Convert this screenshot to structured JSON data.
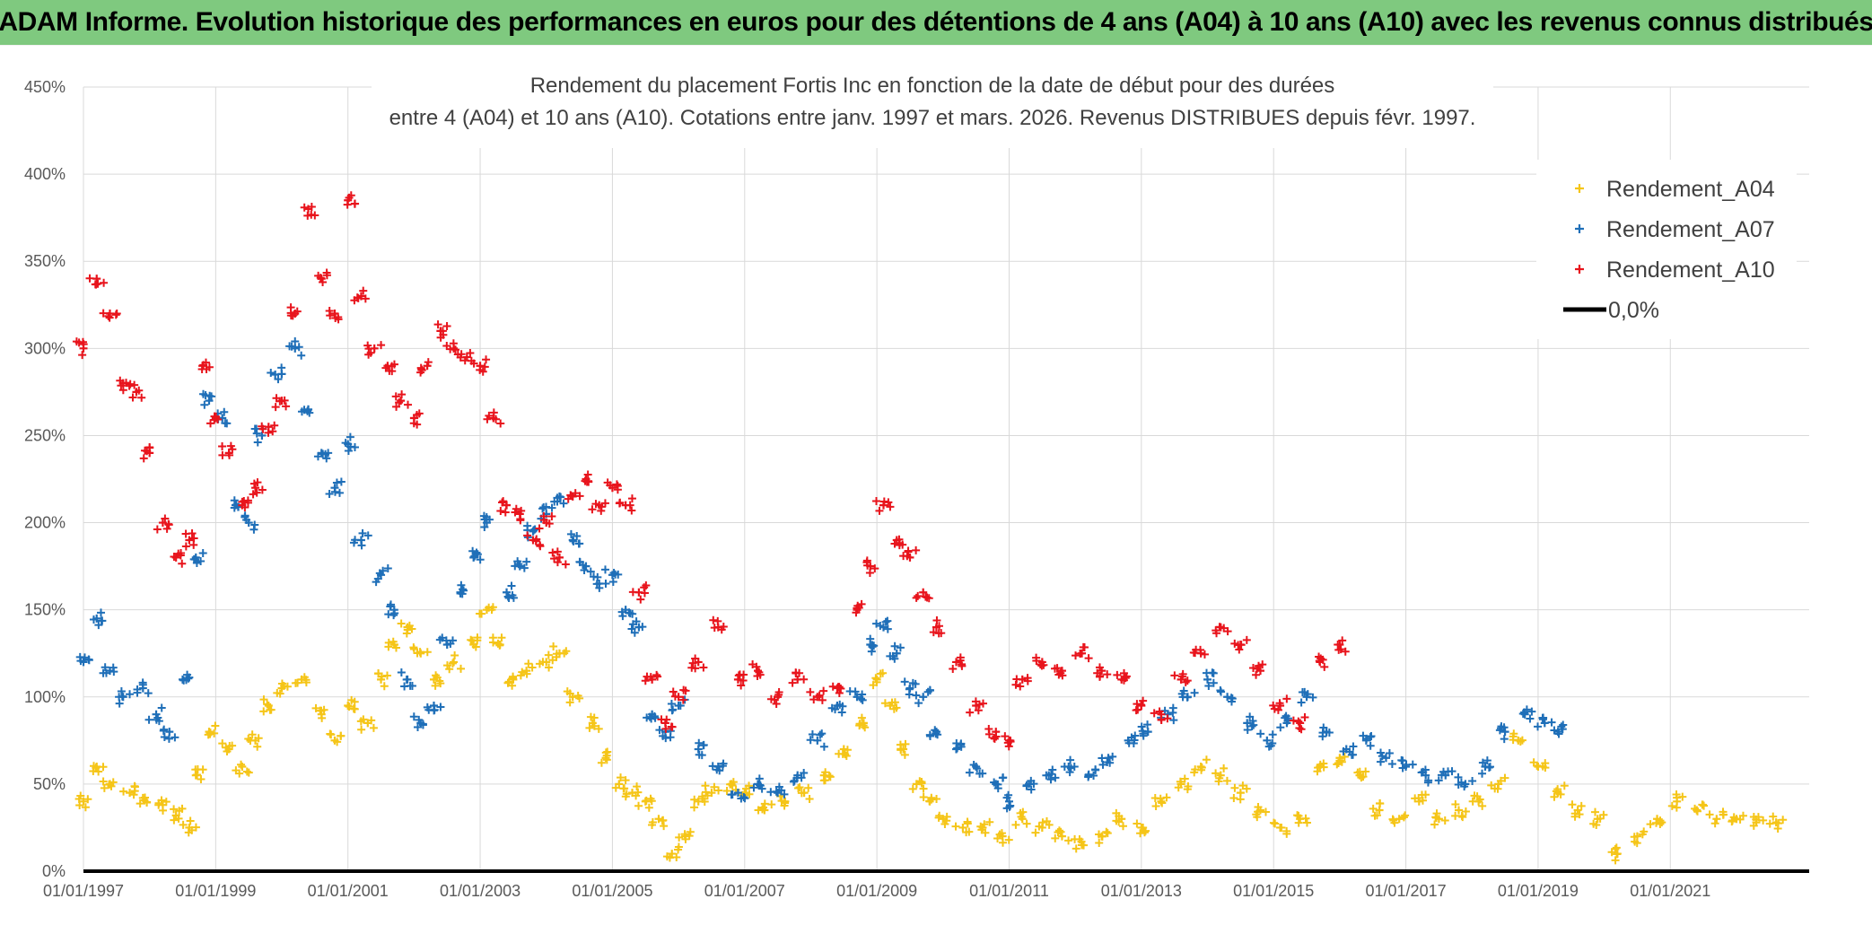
{
  "banner": {
    "title": "ADAM Informe. Evolution historique des performances en euros pour des détentions de 4 ans (A04) à 10 ans (A10) avec les revenus connus distribués"
  },
  "chart_data": {
    "type": "scatter",
    "title_lines": [
      "Rendement du placement Fortis Inc en fonction de la date de début pour des durées",
      "entre 4 (A04) et 10 ans (A10). Cotations entre janv. 1997 et mars. 2026. Revenus DISTRIBUES depuis févr. 1997."
    ],
    "x_ticks": [
      "01/01/1997",
      "01/01/1999",
      "01/01/2001",
      "01/01/2003",
      "01/01/2005",
      "01/01/2007",
      "01/01/2009",
      "01/01/2011",
      "01/01/2013",
      "01/01/2015",
      "01/01/2017",
      "01/01/2019",
      "01/01/2021"
    ],
    "y_ticks": [
      "0%",
      "50%",
      "100%",
      "150%",
      "200%",
      "250%",
      "300%",
      "350%",
      "400%",
      "450%"
    ],
    "xlim": [
      1997.0,
      2023.1
    ],
    "ylim": [
      0,
      450
    ],
    "grid": true,
    "legend_position": "top-right",
    "series": [
      {
        "name": "Rendement_A04",
        "color": "#f5c518",
        "marker": "+",
        "points": [
          [
            1997.0,
            40
          ],
          [
            1997.2,
            60
          ],
          [
            1997.4,
            50
          ],
          [
            1997.7,
            45
          ],
          [
            1997.9,
            42
          ],
          [
            1998.2,
            38
          ],
          [
            1998.4,
            32
          ],
          [
            1998.6,
            25
          ],
          [
            1998.7,
            55
          ],
          [
            1998.9,
            80
          ],
          [
            1999.2,
            70
          ],
          [
            1999.4,
            60
          ],
          [
            1999.6,
            75
          ],
          [
            1999.8,
            95
          ],
          [
            2000.0,
            105
          ],
          [
            2000.3,
            110
          ],
          [
            2000.6,
            90
          ],
          [
            2000.8,
            75
          ],
          [
            2001.0,
            95
          ],
          [
            2001.3,
            85
          ],
          [
            2001.5,
            110
          ],
          [
            2001.7,
            130
          ],
          [
            2001.9,
            140
          ],
          [
            2002.1,
            125
          ],
          [
            2002.3,
            110
          ],
          [
            2002.6,
            120
          ],
          [
            2002.9,
            130
          ],
          [
            2003.1,
            150
          ],
          [
            2003.3,
            130
          ],
          [
            2003.5,
            110
          ],
          [
            2003.7,
            115
          ],
          [
            2004.0,
            120
          ],
          [
            2004.2,
            125
          ],
          [
            2004.4,
            100
          ],
          [
            2004.7,
            85
          ],
          [
            2004.9,
            65
          ],
          [
            2005.1,
            50
          ],
          [
            2005.3,
            45
          ],
          [
            2005.5,
            40
          ],
          [
            2005.7,
            30
          ],
          [
            2005.9,
            10
          ],
          [
            2006.1,
            20
          ],
          [
            2006.3,
            40
          ],
          [
            2006.5,
            45
          ],
          [
            2006.8,
            50
          ],
          [
            2007.0,
            45
          ],
          [
            2007.3,
            35
          ],
          [
            2007.6,
            40
          ],
          [
            2007.9,
            45
          ],
          [
            2008.2,
            55
          ],
          [
            2008.5,
            70
          ],
          [
            2008.8,
            85
          ],
          [
            2009.0,
            110
          ],
          [
            2009.2,
            95
          ],
          [
            2009.4,
            70
          ],
          [
            2009.6,
            50
          ],
          [
            2009.8,
            40
          ],
          [
            2010.0,
            30
          ],
          [
            2010.3,
            25
          ],
          [
            2010.6,
            25
          ],
          [
            2010.9,
            20
          ],
          [
            2011.2,
            30
          ],
          [
            2011.5,
            25
          ],
          [
            2011.8,
            20
          ],
          [
            2012.1,
            15
          ],
          [
            2012.4,
            20
          ],
          [
            2012.7,
            30
          ],
          [
            2013.0,
            25
          ],
          [
            2013.3,
            40
          ],
          [
            2013.6,
            50
          ],
          [
            2013.9,
            60
          ],
          [
            2014.2,
            55
          ],
          [
            2014.5,
            45
          ],
          [
            2014.8,
            35
          ],
          [
            2015.1,
            25
          ],
          [
            2015.4,
            30
          ],
          [
            2015.7,
            60
          ],
          [
            2016.0,
            65
          ],
          [
            2016.3,
            55
          ],
          [
            2016.6,
            35
          ],
          [
            2016.9,
            30
          ],
          [
            2017.2,
            40
          ],
          [
            2017.5,
            30
          ],
          [
            2017.8,
            35
          ],
          [
            2018.1,
            40
          ],
          [
            2018.4,
            50
          ],
          [
            2018.7,
            75
          ],
          [
            2019.0,
            60
          ],
          [
            2019.3,
            45
          ],
          [
            2019.6,
            35
          ],
          [
            2019.9,
            30
          ],
          [
            2020.2,
            10
          ],
          [
            2020.5,
            20
          ],
          [
            2020.8,
            30
          ],
          [
            2021.1,
            40
          ],
          [
            2021.4,
            35
          ],
          [
            2021.7,
            30
          ],
          [
            2022.0,
            30
          ],
          [
            2022.3,
            28
          ],
          [
            2022.6,
            28
          ]
        ]
      },
      {
        "name": "Rendement_A07",
        "color": "#1f6fb8",
        "marker": "+",
        "points": [
          [
            1997.0,
            120
          ],
          [
            1997.2,
            145
          ],
          [
            1997.4,
            115
          ],
          [
            1997.6,
            100
          ],
          [
            1997.9,
            105
          ],
          [
            1998.1,
            90
          ],
          [
            1998.3,
            80
          ],
          [
            1998.5,
            110
          ],
          [
            1998.7,
            180
          ],
          [
            1998.9,
            270
          ],
          [
            1999.1,
            260
          ],
          [
            1999.3,
            210
          ],
          [
            1999.5,
            200
          ],
          [
            1999.7,
            250
          ],
          [
            1999.9,
            285
          ],
          [
            2000.2,
            300
          ],
          [
            2000.4,
            265
          ],
          [
            2000.6,
            240
          ],
          [
            2000.8,
            220
          ],
          [
            2001.0,
            245
          ],
          [
            2001.2,
            190
          ],
          [
            2001.5,
            170
          ],
          [
            2001.7,
            150
          ],
          [
            2001.9,
            110
          ],
          [
            2002.1,
            85
          ],
          [
            2002.3,
            95
          ],
          [
            2002.5,
            130
          ],
          [
            2002.7,
            160
          ],
          [
            2002.9,
            180
          ],
          [
            2003.1,
            200
          ],
          [
            2003.4,
            160
          ],
          [
            2003.6,
            175
          ],
          [
            2003.8,
            195
          ],
          [
            2004.0,
            205
          ],
          [
            2004.2,
            215
          ],
          [
            2004.4,
            190
          ],
          [
            2004.6,
            175
          ],
          [
            2004.8,
            165
          ],
          [
            2005.0,
            170
          ],
          [
            2005.2,
            150
          ],
          [
            2005.4,
            140
          ],
          [
            2005.6,
            90
          ],
          [
            2005.8,
            80
          ],
          [
            2006.0,
            95
          ],
          [
            2006.3,
            70
          ],
          [
            2006.6,
            60
          ],
          [
            2006.9,
            45
          ],
          [
            2007.2,
            50
          ],
          [
            2007.5,
            45
          ],
          [
            2007.8,
            55
          ],
          [
            2008.1,
            75
          ],
          [
            2008.4,
            95
          ],
          [
            2008.7,
            100
          ],
          [
            2008.9,
            130
          ],
          [
            2009.1,
            140
          ],
          [
            2009.3,
            125
          ],
          [
            2009.5,
            105
          ],
          [
            2009.7,
            100
          ],
          [
            2009.9,
            80
          ],
          [
            2010.2,
            70
          ],
          [
            2010.5,
            60
          ],
          [
            2010.8,
            50
          ],
          [
            2011.0,
            40
          ],
          [
            2011.3,
            50
          ],
          [
            2011.6,
            55
          ],
          [
            2011.9,
            60
          ],
          [
            2012.2,
            55
          ],
          [
            2012.5,
            65
          ],
          [
            2012.8,
            75
          ],
          [
            2013.1,
            80
          ],
          [
            2013.4,
            90
          ],
          [
            2013.7,
            100
          ],
          [
            2014.0,
            110
          ],
          [
            2014.3,
            100
          ],
          [
            2014.6,
            85
          ],
          [
            2014.9,
            75
          ],
          [
            2015.2,
            85
          ],
          [
            2015.5,
            100
          ],
          [
            2015.8,
            80
          ],
          [
            2016.1,
            70
          ],
          [
            2016.4,
            75
          ],
          [
            2016.7,
            65
          ],
          [
            2017.0,
            60
          ],
          [
            2017.3,
            55
          ],
          [
            2017.6,
            55
          ],
          [
            2017.9,
            50
          ],
          [
            2018.2,
            60
          ],
          [
            2018.5,
            80
          ],
          [
            2018.8,
            90
          ],
          [
            2019.1,
            85
          ],
          [
            2019.3,
            80
          ]
        ]
      },
      {
        "name": "Rendement_A10",
        "color": "#e8141c",
        "marker": "+",
        "points": [
          [
            1997.0,
            300
          ],
          [
            1997.2,
            340
          ],
          [
            1997.4,
            320
          ],
          [
            1997.6,
            280
          ],
          [
            1997.8,
            275
          ],
          [
            1998.0,
            240
          ],
          [
            1998.2,
            200
          ],
          [
            1998.4,
            180
          ],
          [
            1998.6,
            190
          ],
          [
            1998.8,
            290
          ],
          [
            1999.0,
            260
          ],
          [
            1999.2,
            240
          ],
          [
            1999.4,
            210
          ],
          [
            1999.6,
            220
          ],
          [
            1999.8,
            255
          ],
          [
            2000.0,
            270
          ],
          [
            2000.2,
            320
          ],
          [
            2000.4,
            380
          ],
          [
            2000.6,
            340
          ],
          [
            2000.8,
            320
          ],
          [
            2001.0,
            385
          ],
          [
            2001.2,
            330
          ],
          [
            2001.4,
            300
          ],
          [
            2001.6,
            290
          ],
          [
            2001.8,
            270
          ],
          [
            2002.0,
            260
          ],
          [
            2002.2,
            290
          ],
          [
            2002.4,
            310
          ],
          [
            2002.6,
            300
          ],
          [
            2002.8,
            295
          ],
          [
            2003.0,
            290
          ],
          [
            2003.2,
            260
          ],
          [
            2003.4,
            210
          ],
          [
            2003.6,
            205
          ],
          [
            2003.8,
            190
          ],
          [
            2004.0,
            200
          ],
          [
            2004.2,
            180
          ],
          [
            2004.4,
            215
          ],
          [
            2004.6,
            225
          ],
          [
            2004.8,
            210
          ],
          [
            2005.0,
            220
          ],
          [
            2005.2,
            210
          ],
          [
            2005.4,
            160
          ],
          [
            2005.6,
            110
          ],
          [
            2005.8,
            85
          ],
          [
            2006.0,
            100
          ],
          [
            2006.3,
            120
          ],
          [
            2006.6,
            140
          ],
          [
            2006.9,
            110
          ],
          [
            2007.2,
            115
          ],
          [
            2007.5,
            100
          ],
          [
            2007.8,
            110
          ],
          [
            2008.1,
            100
          ],
          [
            2008.4,
            105
          ],
          [
            2008.7,
            150
          ],
          [
            2008.9,
            175
          ],
          [
            2009.1,
            210
          ],
          [
            2009.3,
            190
          ],
          [
            2009.5,
            180
          ],
          [
            2009.7,
            160
          ],
          [
            2009.9,
            140
          ],
          [
            2010.2,
            120
          ],
          [
            2010.5,
            95
          ],
          [
            2010.8,
            80
          ],
          [
            2011.0,
            75
          ],
          [
            2011.2,
            110
          ],
          [
            2011.5,
            120
          ],
          [
            2011.8,
            115
          ],
          [
            2012.1,
            125
          ],
          [
            2012.4,
            115
          ],
          [
            2012.7,
            110
          ],
          [
            2013.0,
            95
          ],
          [
            2013.3,
            90
          ],
          [
            2013.6,
            110
          ],
          [
            2013.9,
            125
          ],
          [
            2014.2,
            140
          ],
          [
            2014.5,
            130
          ],
          [
            2014.8,
            115
          ],
          [
            2015.1,
            95
          ],
          [
            2015.4,
            85
          ],
          [
            2015.7,
            120
          ],
          [
            2016.0,
            130
          ]
        ]
      },
      {
        "name": "0,0%",
        "color": "#000000",
        "marker": "line",
        "points": [
          [
            1997.0,
            0
          ],
          [
            2023.1,
            0
          ]
        ]
      }
    ]
  }
}
